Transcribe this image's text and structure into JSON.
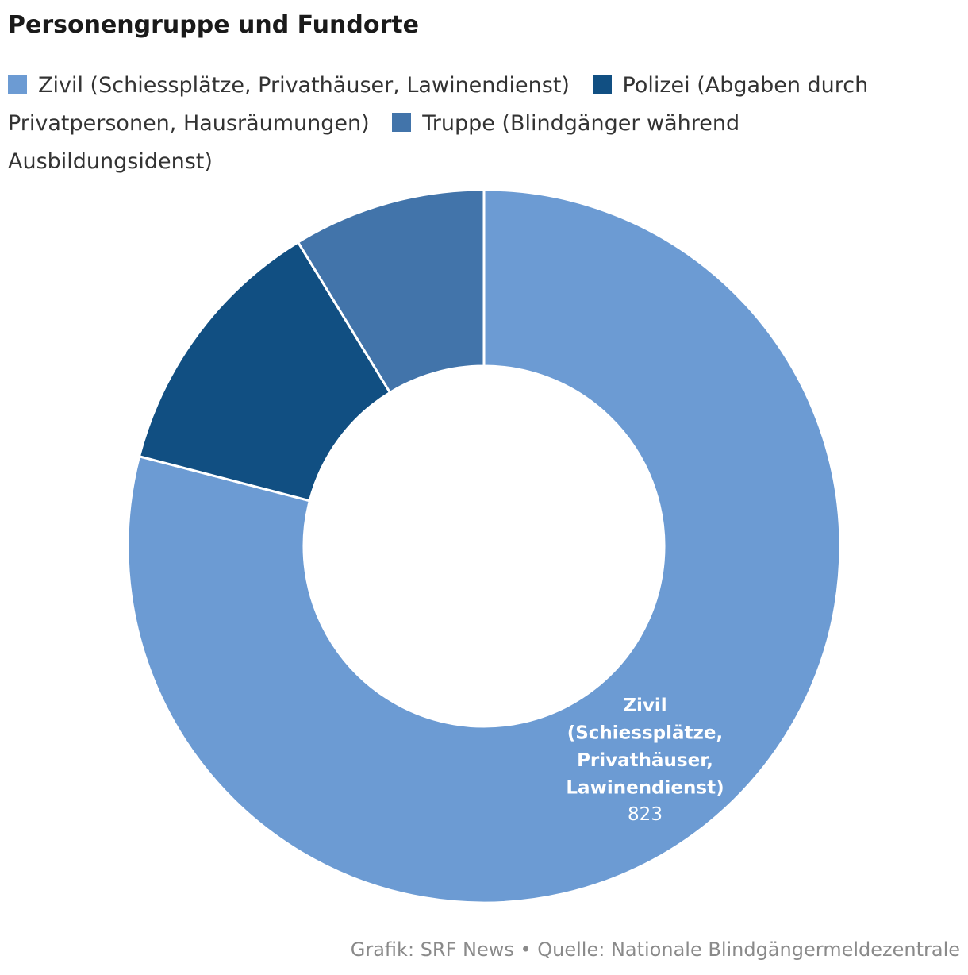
{
  "chart_data": {
    "type": "pie",
    "title": "Personengruppe und Fundorte",
    "legend_position": "top",
    "donut": true,
    "slices": [
      {
        "name": "Zivil (Schiessplätze, Privathäuser, Lawinendienst)",
        "label_lines": [
          "Zivil",
          "(Schiessplätze,",
          "Privathäuser,",
          "Lawinendienst)"
        ],
        "value": 823,
        "value_label": "823",
        "color": "#6c9bd3"
      },
      {
        "name": "Polizei (Abgaben durch Privatpersonen, Hausräumungen)",
        "value": 127,
        "color": "#114f82"
      },
      {
        "name": "Truppe (Blindgänger während Ausbildungsidenst)",
        "value": 91,
        "color": "#4274aa"
      }
    ]
  },
  "footer": "Grafik: SRF News • Quelle: Nationale Blindgängermeldezentrale"
}
